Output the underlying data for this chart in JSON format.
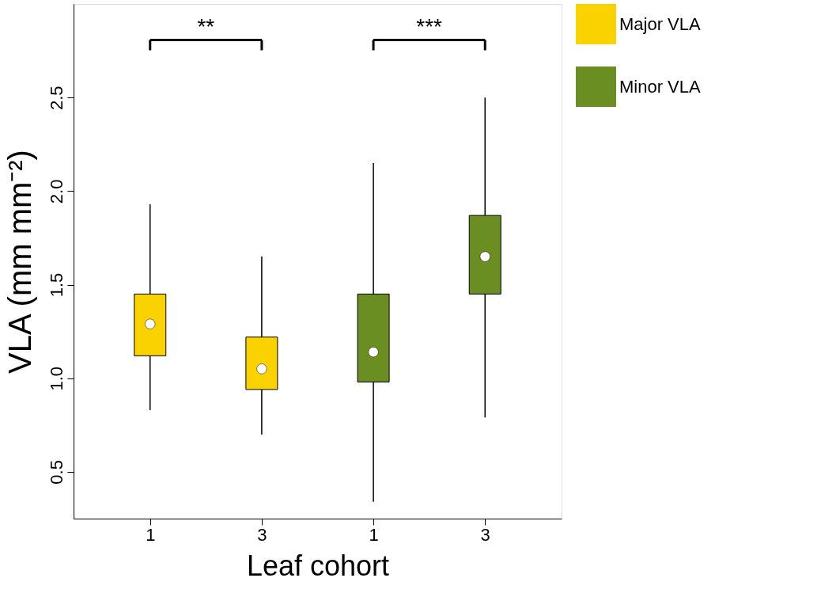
{
  "chart_data": {
    "type": "box",
    "xlabel": "Leaf cohort",
    "ylabel": "VLA (mm mm⁻²)",
    "categories": [
      "1",
      "3",
      "1",
      "3"
    ],
    "series": [
      {
        "name": "Major VLA",
        "color": "#f9d200",
        "boxes": [
          {
            "low": 0.83,
            "q1": 1.12,
            "median": 1.29,
            "q3": 1.45,
            "high": 1.93
          },
          {
            "low": 0.7,
            "q1": 0.94,
            "median": 1.05,
            "q3": 1.22,
            "high": 1.65
          },
          null,
          null
        ]
      },
      {
        "name": "Minor VLA",
        "color": "#6b8e23",
        "boxes": [
          null,
          null,
          {
            "low": 0.34,
            "q1": 0.98,
            "median": 1.14,
            "q3": 1.45,
            "high": 2.15
          },
          {
            "low": 0.79,
            "q1": 1.45,
            "median": 1.65,
            "q3": 1.87,
            "high": 2.5
          }
        ]
      }
    ],
    "ylim": [
      0.25,
      3.0
    ],
    "yticks": [
      0.5,
      {
        "value": 1,
        "label": "1.0"
      },
      1.5,
      {
        "value": 2,
        "label": "2.0"
      },
      2.5
    ],
    "annotations": [
      "**",
      "***"
    ],
    "grid": false,
    "legend": "right"
  }
}
